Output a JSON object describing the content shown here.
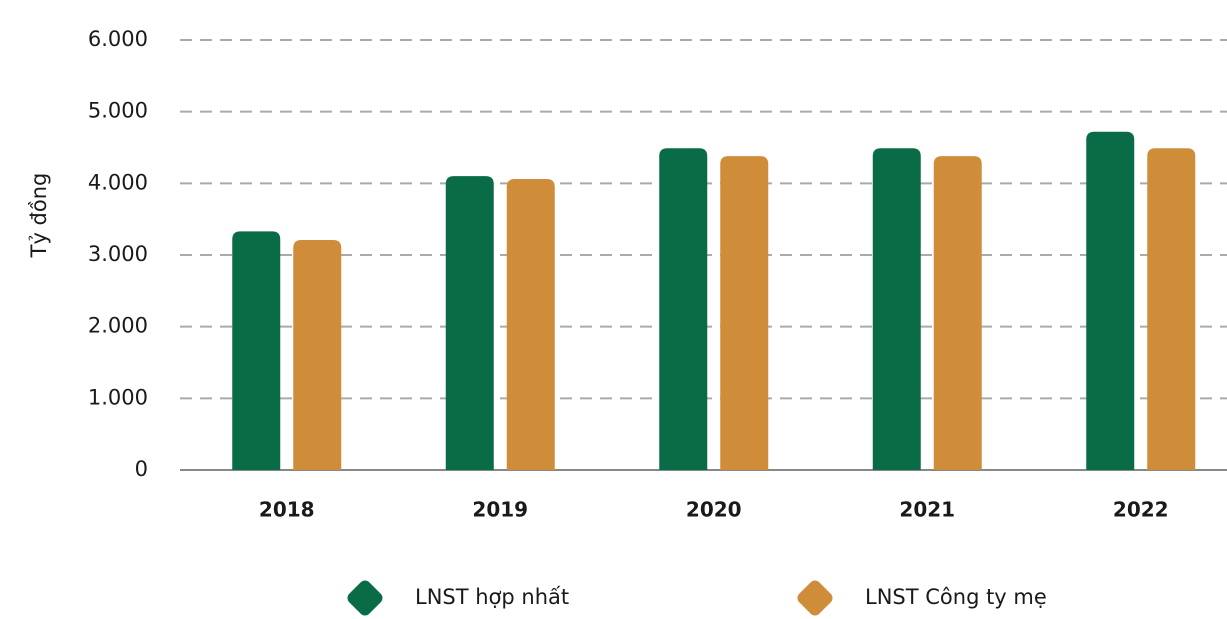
{
  "chart_data": {
    "type": "bar",
    "y_label": "Tỷ đồng",
    "categories": [
      "2018",
      "2019",
      "2020",
      "2021",
      "2022"
    ],
    "series": [
      {
        "name": "LNST hợp nhất",
        "color": "#0a6b47",
        "values": [
          3330,
          4100,
          4490,
          4490,
          4720
        ]
      },
      {
        "name": "LNST Công ty mẹ",
        "color": "#cf8d3a",
        "values": [
          3210,
          4060,
          4380,
          4380,
          4490
        ]
      }
    ],
    "ylim": [
      0,
      6000
    ],
    "yticks": [
      0,
      {
        "value": 1000,
        "label": "1.000"
      },
      {
        "value": 2000,
        "label": "2.000"
      },
      {
        "value": 3000,
        "label": "3.000"
      },
      {
        "value": 4000,
        "label": "4.000"
      },
      {
        "value": 5000,
        "label": "5.000"
      },
      {
        "value": 6000,
        "label": "6.000"
      }
    ],
    "grid": true
  }
}
